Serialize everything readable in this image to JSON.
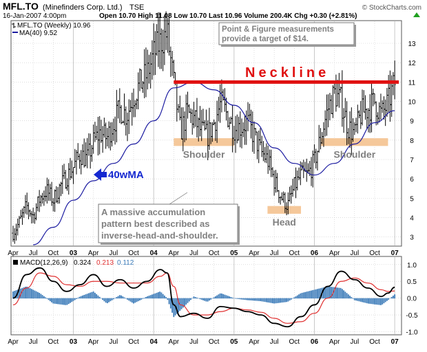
{
  "header": {
    "symbol": "MFL.TO",
    "company": "(Minefinders Corp. Ltd.)",
    "exchange": "TSE",
    "date": "16-Jan-2007 4:00pm",
    "quote_line": "Open 10.70  High 11.08  Low 10.70  Last 10.96  Volume 200.4K  Chg +0.30 (+2.81%)",
    "quote_icon": "up-arrow-icon",
    "watermark": "© StockCharts.com"
  },
  "colors": {
    "price_bars": "#000000",
    "ma_line": "#1a1aa0",
    "neckline": "#e01010",
    "support_zone": "#f5c89a",
    "arrow": "#1428d0",
    "macd_line": "#000000",
    "signal_line": "#e03030",
    "histogram": "#3a7ab8",
    "grid": "#c8c8c8"
  },
  "chart_data": [
    {
      "type": "ohlc",
      "legend": [
        {
          "label": "MFL.TO (Weekly) 10.96",
          "color": "#000000"
        },
        {
          "label": "MA(40) 9.52",
          "color": "#1a1aa0"
        }
      ],
      "y_ticks": [
        3,
        4,
        5,
        6,
        7,
        8,
        9,
        10,
        11,
        12,
        13
      ],
      "ylim": [
        2.6,
        14.1
      ],
      "x_tick_labels": [
        "Apr",
        "Jul",
        "Oct",
        "03",
        "Apr",
        "Jul",
        "Oct",
        "04",
        "Apr",
        "Jul",
        "Oct",
        "05",
        "Apr",
        "Jul",
        "Oct",
        "06",
        "Apr",
        "Jul",
        "Oct",
        "07"
      ],
      "year_labels": [
        "03",
        "04",
        "05",
        "06",
        "07"
      ],
      "close_path": [
        [
          "2002-04",
          3.2
        ],
        [
          "2002-05",
          3.8
        ],
        [
          "2002-06",
          4.6
        ],
        [
          "2002-07",
          4.1
        ],
        [
          "2002-08",
          5.0
        ],
        [
          "2002-09",
          5.4
        ],
        [
          "2002-10",
          4.9
        ],
        [
          "2002-11",
          5.6
        ],
        [
          "2002-12",
          6.1
        ],
        [
          "2003-01",
          6.6
        ],
        [
          "2003-02",
          7.3
        ],
        [
          "2003-03",
          7.0
        ],
        [
          "2003-04",
          7.9
        ],
        [
          "2003-05",
          8.4
        ],
        [
          "2003-06",
          8.1
        ],
        [
          "2003-07",
          8.9
        ],
        [
          "2003-08",
          9.6
        ],
        [
          "2003-09",
          9.3
        ],
        [
          "2003-10",
          10.3
        ],
        [
          "2003-11",
          10.9
        ],
        [
          "2003-12",
          11.4
        ],
        [
          "2004-01",
          12.4
        ],
        [
          "2004-02",
          13.1
        ],
        [
          "2004-03",
          13.5
        ],
        [
          "2004-04",
          10.9
        ],
        [
          "2004-05",
          8.4
        ],
        [
          "2004-06",
          9.4
        ],
        [
          "2004-07",
          9.1
        ],
        [
          "2004-08",
          8.5
        ],
        [
          "2004-09",
          8.2
        ],
        [
          "2004-10",
          8.9
        ],
        [
          "2004-11",
          9.9
        ],
        [
          "2004-12",
          9.3
        ],
        [
          "2005-01",
          8.6
        ],
        [
          "2005-02",
          8.7
        ],
        [
          "2005-03",
          8.9
        ],
        [
          "2005-04",
          8.2
        ],
        [
          "2005-05",
          7.4
        ],
        [
          "2005-06",
          7.0
        ],
        [
          "2005-07",
          5.9
        ],
        [
          "2005-08",
          5.1
        ],
        [
          "2005-09",
          4.6
        ],
        [
          "2005-10",
          5.6
        ],
        [
          "2005-11",
          6.2
        ],
        [
          "2005-12",
          6.2
        ],
        [
          "2006-01",
          6.9
        ],
        [
          "2006-02",
          8.2
        ],
        [
          "2006-03",
          9.6
        ],
        [
          "2006-04",
          10.4
        ],
        [
          "2006-05",
          10.0
        ],
        [
          "2006-06",
          8.7
        ],
        [
          "2006-07",
          8.3
        ],
        [
          "2006-08",
          9.4
        ],
        [
          "2006-09",
          9.6
        ],
        [
          "2006-10",
          10.0
        ],
        [
          "2006-11",
          9.3
        ],
        [
          "2006-12",
          9.9
        ],
        [
          "2007-01",
          10.96
        ]
      ],
      "ma40_path": [
        [
          "2002-07",
          2.4
        ],
        [
          "2002-10",
          3.5
        ],
        [
          "2003-01",
          4.9
        ],
        [
          "2003-04",
          5.9
        ],
        [
          "2003-07",
          6.8
        ],
        [
          "2003-10",
          7.8
        ],
        [
          "2004-01",
          9.0
        ],
        [
          "2004-04",
          10.7
        ],
        [
          "2004-07",
          11.0
        ],
        [
          "2004-10",
          10.6
        ],
        [
          "2005-01",
          9.8
        ],
        [
          "2005-04",
          8.9
        ],
        [
          "2005-07",
          7.6
        ],
        [
          "2005-10",
          6.8
        ],
        [
          "2006-01",
          6.2
        ],
        [
          "2006-04",
          6.8
        ],
        [
          "2006-07",
          7.8
        ],
        [
          "2006-10",
          8.9
        ],
        [
          "2007-01",
          9.52
        ]
      ],
      "neckline": {
        "label": "Neckline",
        "value": 11.0,
        "from": "2004-04",
        "to": "2007-01"
      },
      "zones": [
        {
          "label": "Shoulder",
          "low": 7.7,
          "high": 8.1,
          "from": "2004-04",
          "to": "2005-01"
        },
        {
          "label": "Head",
          "low": 4.2,
          "high": 4.6,
          "from": "2005-06",
          "to": "2005-11"
        },
        {
          "label": "Shoulder",
          "low": 7.7,
          "high": 8.1,
          "from": "2006-02",
          "to": "2006-12"
        }
      ],
      "annotations": {
        "pf_note": [
          "Point & Figure measurements",
          "provide a target of $14."
        ],
        "ma_callout": "40wMA",
        "pattern_note": [
          "A massive accumulation",
          "pattern best described as",
          "inverse-head-and-shoulder."
        ]
      }
    },
    {
      "type": "line",
      "title": "MACD(12,26,9)",
      "legend": [
        {
          "label": "MACD(12,26,9)",
          "color": "#000000"
        },
        {
          "label": "0.324",
          "color": "#000000"
        },
        {
          "label": "0.213",
          "color": "#e03030"
        },
        {
          "label": "0.112",
          "color": "#3a7ab8"
        }
      ],
      "y_ticks": [
        1.0,
        0.5,
        0.0,
        -0.5,
        -1.0
      ],
      "ylim": [
        -1.05,
        1.2
      ],
      "x_tick_labels": [
        "Apr",
        "Jul",
        "Oct",
        "03",
        "Apr",
        "Jul",
        "Oct",
        "04",
        "Apr",
        "Jul",
        "Oct",
        "05",
        "Apr",
        "Jul",
        "Oct",
        "06",
        "Apr",
        "Jul",
        "Oct",
        "07"
      ],
      "year_labels": [
        "03",
        "04",
        "05",
        "06",
        "07"
      ],
      "series": [
        {
          "name": "MACD",
          "points": [
            [
              "2002-04",
              0.0
            ],
            [
              "2002-06",
              0.7
            ],
            [
              "2002-08",
              0.9
            ],
            [
              "2002-10",
              0.5
            ],
            [
              "2002-12",
              0.2
            ],
            [
              "2003-02",
              0.4
            ],
            [
              "2003-04",
              0.7
            ],
            [
              "2003-06",
              0.35
            ],
            [
              "2003-08",
              0.55
            ],
            [
              "2003-10",
              0.3
            ],
            [
              "2003-12",
              0.5
            ],
            [
              "2004-02",
              0.85
            ],
            [
              "2004-03",
              0.75
            ],
            [
              "2004-04",
              -0.2
            ],
            [
              "2004-05",
              -0.55
            ],
            [
              "2004-07",
              -0.45
            ],
            [
              "2004-09",
              -0.6
            ],
            [
              "2004-11",
              -0.25
            ],
            [
              "2005-01",
              -0.3
            ],
            [
              "2005-03",
              -0.4
            ],
            [
              "2005-05",
              -0.5
            ],
            [
              "2005-07",
              -0.75
            ],
            [
              "2005-09",
              -0.85
            ],
            [
              "2005-11",
              -0.55
            ],
            [
              "2006-01",
              -0.2
            ],
            [
              "2006-03",
              0.35
            ],
            [
              "2006-05",
              0.8
            ],
            [
              "2006-07",
              0.55
            ],
            [
              "2006-09",
              0.3
            ],
            [
              "2006-11",
              0.05
            ],
            [
              "2006-12",
              0.15
            ],
            [
              "2007-01",
              0.324
            ]
          ]
        },
        {
          "name": "Signal",
          "points": [
            [
              "2002-04",
              -0.2
            ],
            [
              "2002-06",
              0.3
            ],
            [
              "2002-08",
              0.75
            ],
            [
              "2002-10",
              0.65
            ],
            [
              "2002-12",
              0.4
            ],
            [
              "2003-02",
              0.35
            ],
            [
              "2003-04",
              0.5
            ],
            [
              "2003-06",
              0.5
            ],
            [
              "2003-08",
              0.45
            ],
            [
              "2003-10",
              0.45
            ],
            [
              "2003-12",
              0.45
            ],
            [
              "2004-02",
              0.65
            ],
            [
              "2004-03",
              0.75
            ],
            [
              "2004-04",
              0.35
            ],
            [
              "2004-05",
              -0.2
            ],
            [
              "2004-07",
              -0.5
            ],
            [
              "2004-09",
              -0.5
            ],
            [
              "2004-11",
              -0.4
            ],
            [
              "2005-01",
              -0.3
            ],
            [
              "2005-03",
              -0.35
            ],
            [
              "2005-05",
              -0.42
            ],
            [
              "2005-07",
              -0.6
            ],
            [
              "2005-09",
              -0.75
            ],
            [
              "2005-11",
              -0.7
            ],
            [
              "2006-01",
              -0.45
            ],
            [
              "2006-03",
              0.0
            ],
            [
              "2006-05",
              0.5
            ],
            [
              "2006-07",
              0.6
            ],
            [
              "2006-09",
              0.45
            ],
            [
              "2006-11",
              0.25
            ],
            [
              "2006-12",
              0.2
            ],
            [
              "2007-01",
              0.213
            ]
          ]
        }
      ],
      "histogram": [
        [
          "2002-04",
          0.2
        ],
        [
          "2002-06",
          0.35
        ],
        [
          "2002-08",
          0.15
        ],
        [
          "2002-10",
          -0.15
        ],
        [
          "2002-12",
          -0.2
        ],
        [
          "2003-02",
          0.05
        ],
        [
          "2003-04",
          0.2
        ],
        [
          "2003-06",
          -0.15
        ],
        [
          "2003-08",
          0.1
        ],
        [
          "2003-10",
          -0.15
        ],
        [
          "2003-12",
          0.05
        ],
        [
          "2004-02",
          0.2
        ],
        [
          "2004-03",
          0.0
        ],
        [
          "2004-04",
          -0.55
        ],
        [
          "2004-05",
          -0.35
        ],
        [
          "2004-07",
          0.05
        ],
        [
          "2004-09",
          -0.1
        ],
        [
          "2004-11",
          0.15
        ],
        [
          "2005-01",
          0.0
        ],
        [
          "2005-03",
          -0.05
        ],
        [
          "2005-05",
          -0.08
        ],
        [
          "2005-07",
          -0.15
        ],
        [
          "2005-09",
          -0.1
        ],
        [
          "2005-11",
          0.15
        ],
        [
          "2006-01",
          0.25
        ],
        [
          "2006-03",
          0.35
        ],
        [
          "2006-05",
          0.3
        ],
        [
          "2006-07",
          -0.05
        ],
        [
          "2006-09",
          -0.15
        ],
        [
          "2006-11",
          -0.2
        ],
        [
          "2006-12",
          -0.05
        ],
        [
          "2007-01",
          0.112
        ]
      ]
    }
  ]
}
